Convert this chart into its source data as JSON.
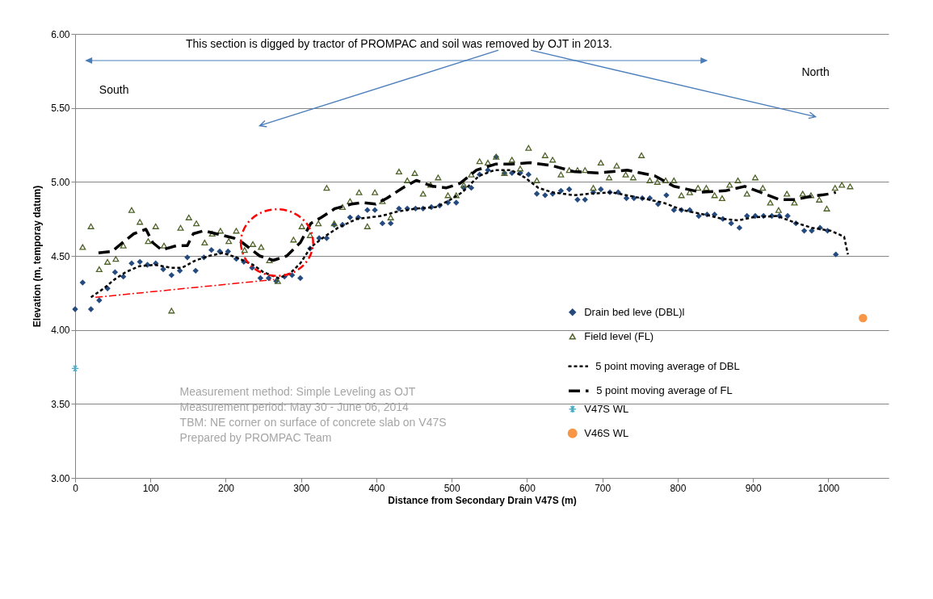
{
  "chart_data": {
    "type": "scatter",
    "xlabel": "Distance from Secondary Drain V47S (m)",
    "ylabel": "Elevation  (m, temporay datum)",
    "xlim": [
      0,
      1080
    ],
    "xticks": [
      0,
      100,
      200,
      300,
      400,
      500,
      600,
      700,
      800,
      900,
      1000
    ],
    "ylim": [
      3,
      6
    ],
    "yticks": [
      {
        "value": 3,
        "label": "3.00"
      },
      {
        "value": 3.5,
        "label": "3.50"
      },
      {
        "value": 4,
        "label": "4.00"
      },
      {
        "value": 4.5,
        "label": "4.50"
      },
      {
        "value": 5,
        "label": "5.00"
      },
      {
        "value": 5.5,
        "label": "5.50"
      },
      {
        "value": 6,
        "label": "6.00"
      }
    ],
    "grid": "y",
    "legend": "bottom right",
    "annotations": [
      "This section is digged by tractor of PROMPAC and soil was removed by OJT in 2013.",
      "South",
      "North",
      "Measurement method: Simple Leveling as OJT",
      "Measurement period: May 30 - June 06, 2014",
      "TBM: NE corner on surface of concrete slab on V47S",
      "Prepared by PROMPAC Team"
    ],
    "series": [
      {
        "name": "Drain bed leve (DBL)l",
        "type": "scatter",
        "marker": "diamond",
        "color": "#254a7d",
        "x": [
          0,
          10,
          21,
          32,
          43,
          53,
          64,
          75,
          86,
          96,
          107,
          117,
          128,
          139,
          149,
          160,
          171,
          181,
          192,
          203,
          214,
          224,
          235,
          246,
          257,
          267,
          278,
          288,
          299,
          312,
          324,
          334,
          344,
          355,
          365,
          376,
          388,
          398,
          408,
          419,
          430,
          441,
          452,
          462,
          473,
          484,
          495,
          506,
          516,
          526,
          537,
          548,
          559,
          570,
          580,
          591,
          602,
          613,
          624,
          634,
          645,
          656,
          667,
          677,
          688,
          698,
          710,
          721,
          732,
          742,
          753,
          763,
          774,
          785,
          795,
          805,
          816,
          828,
          839,
          849,
          860,
          871,
          882,
          892,
          903,
          914,
          925,
          935,
          946,
          957,
          968,
          978,
          989,
          999,
          1010
        ],
        "values": [
          4.14,
          4.32,
          4.14,
          4.2,
          4.28,
          4.39,
          4.36,
          4.45,
          4.46,
          4.44,
          4.45,
          4.41,
          4.37,
          4.4,
          4.49,
          4.4,
          4.49,
          4.54,
          4.53,
          4.53,
          4.48,
          4.46,
          4.42,
          4.35,
          4.35,
          4.33,
          4.36,
          4.37,
          4.35,
          4.55,
          4.62,
          4.62,
          4.71,
          4.71,
          4.76,
          4.76,
          4.81,
          4.81,
          4.72,
          4.72,
          4.82,
          4.82,
          4.82,
          4.82,
          4.83,
          4.84,
          4.86,
          4.86,
          4.96,
          4.96,
          5.05,
          5.08,
          5.17,
          5.06,
          5.06,
          5.06,
          5.05,
          4.92,
          4.91,
          4.92,
          4.94,
          4.95,
          4.88,
          4.88,
          4.93,
          4.95,
          4.93,
          4.93,
          4.89,
          4.89,
          4.89,
          4.89,
          4.85,
          4.91,
          4.81,
          4.81,
          4.81,
          4.77,
          4.78,
          4.78,
          4.75,
          4.72,
          4.69,
          4.77,
          4.77,
          4.77,
          4.77,
          4.77,
          4.77,
          4.72,
          4.67,
          4.67,
          4.69,
          4.67,
          4.51
        ]
      },
      {
        "name": "Field level (FL)",
        "type": "scatter",
        "marker": "triangle",
        "color": "#4f6228",
        "x": [
          10,
          21,
          32,
          43,
          54,
          64,
          75,
          86,
          97,
          107,
          118,
          128,
          140,
          151,
          161,
          172,
          182,
          193,
          204,
          214,
          225,
          236,
          247,
          258,
          269,
          290,
          301,
          312,
          323,
          334,
          344,
          355,
          365,
          377,
          388,
          398,
          408,
          419,
          430,
          441,
          451,
          462,
          472,
          482,
          495,
          506,
          516,
          526,
          537,
          548,
          559,
          570,
          580,
          591,
          602,
          613,
          624,
          634,
          645,
          656,
          667,
          677,
          688,
          698,
          709,
          719,
          731,
          741,
          752,
          763,
          773,
          784,
          795,
          805,
          816,
          827,
          838,
          849,
          859,
          869,
          880,
          892,
          903,
          913,
          923,
          934,
          945,
          955,
          966,
          977,
          988,
          998,
          1009,
          1018,
          1029
        ],
        "values": [
          4.56,
          4.7,
          4.41,
          4.46,
          4.48,
          4.57,
          4.81,
          4.73,
          4.6,
          4.7,
          4.57,
          4.13,
          4.69,
          4.76,
          4.72,
          4.59,
          4.65,
          4.67,
          4.6,
          4.67,
          4.54,
          4.58,
          4.56,
          4.47,
          4.33,
          4.61,
          4.7,
          4.64,
          4.72,
          4.96,
          4.72,
          4.83,
          4.87,
          4.93,
          4.7,
          4.93,
          4.87,
          4.76,
          5.07,
          5.01,
          5.06,
          4.92,
          4.98,
          5.03,
          4.91,
          4.91,
          4.98,
          5.05,
          5.14,
          5.13,
          5.17,
          5.06,
          5.15,
          5.09,
          5.23,
          5.01,
          5.18,
          5.15,
          5.05,
          5.08,
          5.08,
          5.08,
          4.96,
          5.13,
          5.03,
          5.11,
          5.05,
          5.03,
          5.18,
          5.01,
          5,
          5.01,
          5.01,
          4.91,
          4.93,
          4.96,
          4.96,
          4.91,
          4.89,
          4.98,
          5.01,
          4.92,
          5.03,
          4.96,
          4.86,
          4.81,
          4.92,
          4.86,
          4.92,
          4.91,
          4.88,
          4.82,
          4.96,
          4.98,
          4.97
        ]
      },
      {
        "name": "5 point moving average of DBL",
        "type": "line",
        "marker": "none",
        "line_style": "dashed",
        "color": "#000000",
        "x": [
          21,
          38,
          52,
          67,
          85,
          106,
          128,
          142,
          160,
          178,
          196,
          214,
          236,
          250,
          270,
          285,
          299,
          313,
          331,
          349,
          374,
          407,
          428,
          453,
          479,
          495,
          514,
          536,
          557,
          579,
          597,
          615,
          633,
          662,
          683,
          712,
          752,
          781,
          806,
          835,
          860,
          881,
          899,
          932,
          953,
          978,
          1003,
          1021,
          1026
        ],
        "values": [
          4.22,
          4.28,
          4.34,
          4.39,
          4.43,
          4.44,
          4.42,
          4.42,
          4.47,
          4.5,
          4.52,
          4.49,
          4.44,
          4.39,
          4.35,
          4.38,
          4.45,
          4.56,
          4.63,
          4.69,
          4.75,
          4.77,
          4.8,
          4.82,
          4.83,
          4.87,
          4.93,
          5.04,
          5.08,
          5.08,
          5.03,
          4.96,
          4.93,
          4.91,
          4.92,
          4.93,
          4.89,
          4.86,
          4.81,
          4.78,
          4.75,
          4.74,
          4.76,
          4.77,
          4.73,
          4.69,
          4.67,
          4.63,
          4.51
        ]
      },
      {
        "name": "5 point moving average of FL",
        "type": "line",
        "marker": "none",
        "line_style": "dashed",
        "color": "#000000",
        "x": [
          31,
          49,
          63,
          78,
          94,
          103,
          115,
          135,
          149,
          157,
          171,
          187,
          211,
          222,
          245,
          263,
          281,
          299,
          313,
          327,
          345,
          367,
          381,
          399,
          414,
          435,
          453,
          475,
          493,
          511,
          533,
          558,
          579,
          604,
          633,
          662,
          694,
          733,
          770,
          795,
          831,
          863,
          889,
          910,
          935,
          956,
          974,
          1003,
          1010
        ],
        "values": [
          4.52,
          4.53,
          4.59,
          4.65,
          4.68,
          4.59,
          4.54,
          4.57,
          4.57,
          4.65,
          4.67,
          4.65,
          4.62,
          4.59,
          4.5,
          4.47,
          4.5,
          4.59,
          4.72,
          4.76,
          4.82,
          4.85,
          4.86,
          4.85,
          4.89,
          4.96,
          5.01,
          4.97,
          4.96,
          4.99,
          5.08,
          5.12,
          5.12,
          5.13,
          5.11,
          5.07,
          5.06,
          5.08,
          5.04,
          4.97,
          4.93,
          4.94,
          4.97,
          4.93,
          4.88,
          4.88,
          4.9,
          4.92,
          4.93
        ]
      },
      {
        "name": "V47S WL",
        "type": "scatter",
        "marker": "cross",
        "color": "#4bacc6",
        "x": [
          0
        ],
        "values": [
          3.74
        ]
      },
      {
        "name": "V46S WL",
        "type": "scatter",
        "marker": "circle",
        "color": "#f79646",
        "x": [
          1046
        ],
        "values": [
          4.08
        ]
      },
      {
        "type": "line",
        "marker": "none",
        "line_style": "dashed",
        "color": "#ff0000",
        "x": [
          27,
          264
        ],
        "values": [
          4.22,
          4.34
        ]
      }
    ]
  }
}
